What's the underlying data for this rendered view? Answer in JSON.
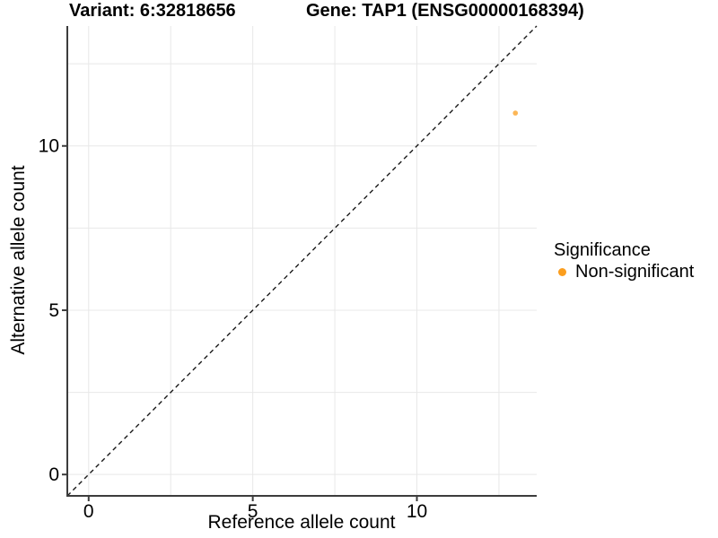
{
  "header": {
    "variant_title": "Variant: 6:32818656",
    "gene_title": "Gene: TAP1 (ENSG00000168394)"
  },
  "chart_data": {
    "type": "scatter",
    "title": "",
    "xlabel": "Reference allele count",
    "ylabel": "Alternative allele count",
    "xlim": [
      -0.65,
      13.65
    ],
    "ylim": [
      -0.65,
      13.65
    ],
    "x_major_ticks": [
      0,
      5,
      10
    ],
    "y_major_ticks": [
      0,
      5,
      10
    ],
    "x_minor_ticks": [
      2.5,
      7.5,
      12.5
    ],
    "y_minor_ticks": [
      2.5,
      7.5,
      12.5
    ],
    "grid": "major+minor",
    "identity_line": {
      "slope": 1,
      "intercept": 0,
      "style": "dashed",
      "color": "#1a1a1a"
    },
    "series": [
      {
        "name": "Non-significant",
        "color": "#FB9E1E",
        "point_opacity": 0.75,
        "points": [
          {
            "x": 13,
            "y": 11
          }
        ]
      }
    ],
    "legend": {
      "title": "Significance",
      "position": "right",
      "items": [
        {
          "label": "Non-significant",
          "color": "#FB9E1E"
        }
      ]
    }
  },
  "colors": {
    "accent": "#FB9E1E",
    "grid": "#E8E8E8",
    "axis": "#3C3C3C",
    "text": "#000000",
    "background": "#FFFFFF"
  }
}
